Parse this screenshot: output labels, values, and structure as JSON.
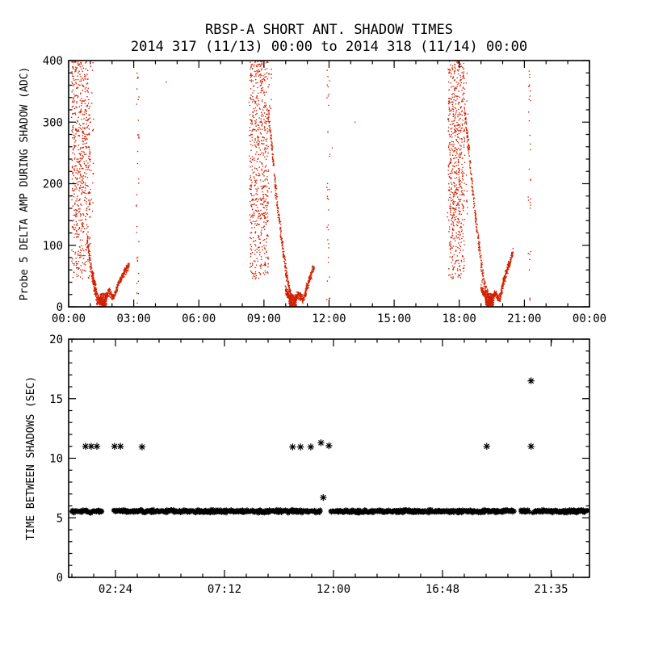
{
  "figure": {
    "background": "#ffffff",
    "axis_color": "#000000",
    "text_color": "#000000"
  },
  "chart_data": [
    {
      "type": "scatter",
      "panel": "top",
      "title": "RBSP-A SHORT ANT. SHADOW TIMES",
      "subtitle": "2014 317 (11/13) 00:00 to 2014 318 (11/14) 00:00",
      "xlabel": "",
      "ylabel": "Probe 5 DELTA AMP DURING SHADOW (ADC)",
      "xlim": [
        0,
        24
      ],
      "ylim": [
        0,
        400
      ],
      "xtick_values": [
        0,
        3,
        6,
        9,
        12,
        15,
        18,
        21,
        24
      ],
      "xtick_labels": [
        "00:00",
        "03:00",
        "06:00",
        "09:00",
        "12:00",
        "15:00",
        "18:00",
        "21:00",
        "00:00"
      ],
      "ytick_values": [
        0,
        100,
        200,
        300,
        400
      ],
      "ytick_labels": [
        "0",
        "100",
        "200",
        "300",
        "400"
      ],
      "x_minor_step": 1,
      "y_minor_step": 20,
      "grid": false,
      "legend": "none",
      "marker": "dot",
      "marker_color": "#d21f00",
      "clusters": [
        {
          "kind": "box",
          "x0": 0.15,
          "x1": 1.0,
          "y0": 45,
          "y1": 400,
          "n": 520
        },
        {
          "kind": "box",
          "x0": 0.1,
          "x1": 1.15,
          "y0": 130,
          "y1": 400,
          "n": 120
        },
        {
          "kind": "curve",
          "n": 150,
          "xj": 0.04,
          "yj": 14,
          "pts": [
            [
              0.85,
              110
            ],
            [
              1.1,
              45
            ],
            [
              1.3,
              12
            ],
            [
              1.5,
              4
            ]
          ]
        },
        {
          "kind": "curve",
          "n": 480,
          "xj": 0.05,
          "yj": 9,
          "pts": [
            [
              1.05,
              62
            ],
            [
              1.35,
              14
            ],
            [
              1.6,
              3
            ],
            [
              1.85,
              26
            ],
            [
              2.05,
              14
            ],
            [
              2.35,
              42
            ],
            [
              2.6,
              58
            ],
            [
              2.8,
              70
            ]
          ]
        },
        {
          "kind": "box",
          "x0": 1.45,
          "x1": 1.75,
          "y0": 1,
          "y1": 22,
          "n": 150
        },
        {
          "kind": "box",
          "x0": 3.12,
          "x1": 3.24,
          "y0": 5,
          "y1": 385,
          "n": 34
        },
        {
          "kind": "box",
          "x0": 8.35,
          "x1": 9.2,
          "y0": 45,
          "y1": 400,
          "n": 520
        },
        {
          "kind": "box",
          "x0": 8.3,
          "x1": 9.35,
          "y0": 130,
          "y1": 400,
          "n": 120
        },
        {
          "kind": "curve",
          "n": 320,
          "xj": 0.05,
          "yj": 14,
          "pts": [
            [
              9.2,
              320
            ],
            [
              9.6,
              170
            ],
            [
              10.0,
              60
            ],
            [
              10.3,
              8
            ]
          ]
        },
        {
          "kind": "curve",
          "n": 460,
          "xj": 0.05,
          "yj": 9,
          "pts": [
            [
              10.0,
              28
            ],
            [
              10.3,
              4
            ],
            [
              10.6,
              20
            ],
            [
              10.8,
              11
            ],
            [
              11.1,
              45
            ],
            [
              11.32,
              66
            ]
          ]
        },
        {
          "kind": "box",
          "x0": 10.15,
          "x1": 10.5,
          "y0": 1,
          "y1": 20,
          "n": 150
        },
        {
          "kind": "box",
          "x0": 11.9,
          "x1": 12.05,
          "y0": 5,
          "y1": 385,
          "n": 34
        },
        {
          "kind": "box",
          "x0": 17.5,
          "x1": 18.25,
          "y0": 45,
          "y1": 400,
          "n": 520
        },
        {
          "kind": "box",
          "x0": 17.45,
          "x1": 18.4,
          "y0": 130,
          "y1": 400,
          "n": 120
        },
        {
          "kind": "curve",
          "n": 300,
          "xj": 0.05,
          "yj": 14,
          "pts": [
            [
              18.25,
              320
            ],
            [
              18.7,
              160
            ],
            [
              19.1,
              45
            ],
            [
              19.42,
              6
            ]
          ]
        },
        {
          "kind": "curve",
          "n": 500,
          "xj": 0.05,
          "yj": 9,
          "pts": [
            [
              19.0,
              32
            ],
            [
              19.35,
              4
            ],
            [
              19.65,
              22
            ],
            [
              19.85,
              12
            ],
            [
              20.15,
              55
            ],
            [
              20.48,
              88
            ]
          ]
        },
        {
          "kind": "box",
          "x0": 19.2,
          "x1": 19.6,
          "y0": 1,
          "y1": 22,
          "n": 150
        },
        {
          "kind": "box",
          "x0": 21.17,
          "x1": 21.3,
          "y0": 5,
          "y1": 385,
          "n": 32
        },
        {
          "kind": "points",
          "pts": [
            [
              4.5,
              365
            ],
            [
              12.15,
              258
            ],
            [
              13.2,
              300
            ]
          ]
        }
      ]
    },
    {
      "type": "scatter",
      "panel": "bottom",
      "title": "",
      "xlabel": "",
      "ylabel": "TIME BETWEEN SHADOWS (SEC)",
      "xlim": [
        0.337,
        23.273
      ],
      "ylim": [
        0,
        20
      ],
      "xtick_values": [
        2.4,
        7.2,
        12.0,
        16.8,
        21.583
      ],
      "xtick_labels": [
        "02:24",
        "07:12",
        "12:00",
        "16:48",
        "21:35"
      ],
      "ytick_values": [
        0,
        5,
        10,
        15,
        20
      ],
      "ytick_labels": [
        "0",
        "5",
        "10",
        "15",
        "20"
      ],
      "x_minor_step": 0.96,
      "y_minor_step": 1,
      "grid": false,
      "legend": "none",
      "marker": "asterisk",
      "marker_color": "#000000",
      "band": {
        "y": 5.55,
        "jitter": 0.18,
        "x0": 0.45,
        "x1": 23.2,
        "n": 900,
        "gaps": [
          [
            1.82,
            2.28
          ],
          [
            11.45,
            11.86
          ],
          [
            19.98,
            20.22
          ],
          [
            20.62,
            20.78
          ]
        ]
      },
      "outliers": [
        [
          1.08,
          11.0
        ],
        [
          1.33,
          11.0
        ],
        [
          1.58,
          11.0
        ],
        [
          2.36,
          11.0
        ],
        [
          2.62,
          11.0
        ],
        [
          3.57,
          10.95
        ],
        [
          10.2,
          10.95
        ],
        [
          10.55,
          10.95
        ],
        [
          11.0,
          10.95
        ],
        [
          11.45,
          11.3
        ],
        [
          11.8,
          11.05
        ],
        [
          18.75,
          11.0
        ],
        [
          20.7,
          11.0
        ],
        [
          20.7,
          16.5
        ],
        [
          11.55,
          6.7
        ]
      ]
    }
  ]
}
